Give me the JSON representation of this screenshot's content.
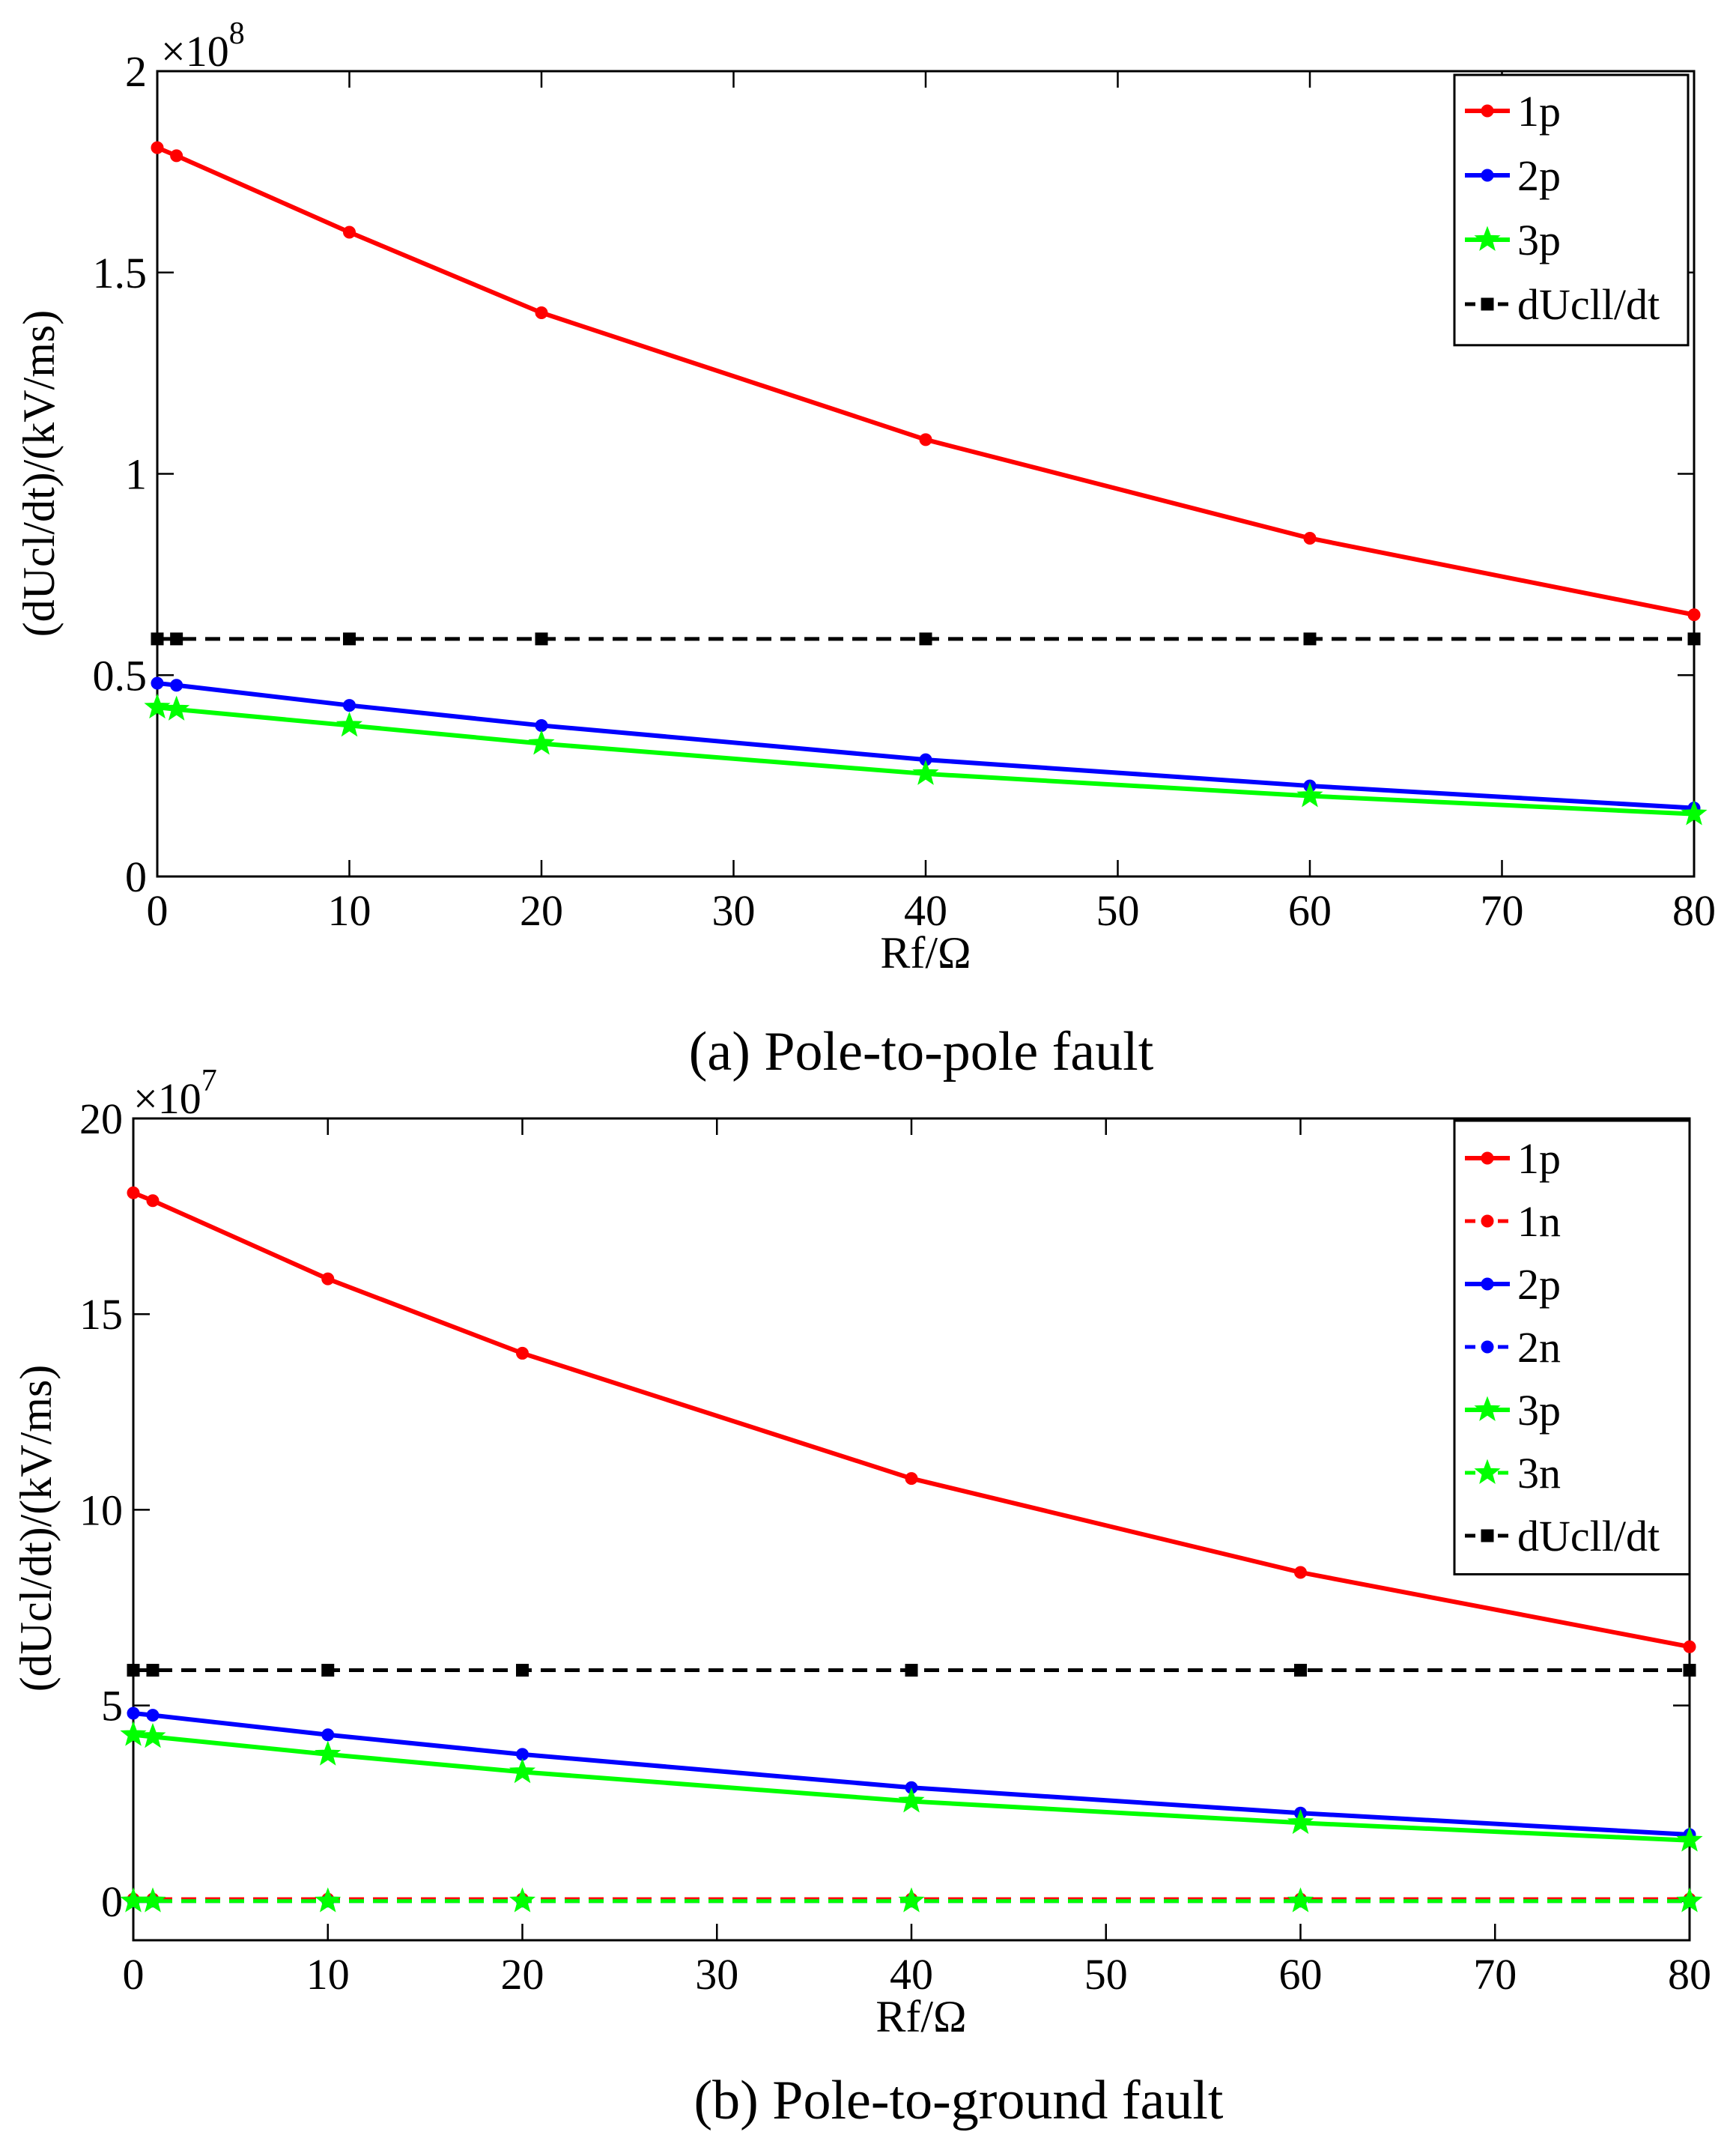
{
  "chart_data": [
    {
      "type": "line",
      "caption": "(a)  Pole-to-pole fault",
      "title": "",
      "xlabel": "Rf/Ω",
      "ylabel": "(dUcl/dt)/(kV/ms)",
      "exponent_base": "×10",
      "exponent_power": "8",
      "xlim": [
        0,
        80
      ],
      "ylim": [
        0,
        2
      ],
      "xticks": [
        0,
        10,
        20,
        30,
        40,
        50,
        60,
        70,
        80
      ],
      "xtick_labels": [
        "0",
        "10",
        "20",
        "30",
        "40",
        "50",
        "60",
        "70",
        "80"
      ],
      "yticks": [
        0,
        0.5,
        1,
        1.5,
        2
      ],
      "ytick_labels": [
        "0",
        "0.5",
        "1",
        "1.5",
        "2"
      ],
      "x": [
        0,
        1,
        10,
        20,
        40,
        60,
        80
      ],
      "legend_position": "top-right",
      "series": [
        {
          "name": "1p",
          "color": "#ff0000",
          "marker": "dot",
          "dashed": false,
          "values": [
            1.81,
            1.79,
            1.6,
            1.4,
            1.085,
            0.84,
            0.65
          ]
        },
        {
          "name": "2p",
          "color": "#0000ff",
          "marker": "dot",
          "dashed": false,
          "values": [
            0.48,
            0.475,
            0.425,
            0.375,
            0.29,
            0.225,
            0.17
          ]
        },
        {
          "name": "3p",
          "color": "#00ff00",
          "marker": "star",
          "dashed": false,
          "values": [
            0.42,
            0.415,
            0.375,
            0.33,
            0.255,
            0.2,
            0.155
          ]
        },
        {
          "name": "dUcll/dt",
          "color": "#000000",
          "marker": "square",
          "dashed": true,
          "values": [
            0.59,
            0.59,
            0.59,
            0.59,
            0.59,
            0.59,
            0.59
          ]
        }
      ]
    },
    {
      "type": "line",
      "caption": "(b)  Pole-to-ground fault",
      "title": "",
      "xlabel": "Rf/Ω",
      "ylabel": "(dUcl/dt)/(kV/ms)",
      "exponent_base": "×10",
      "exponent_power": "7",
      "xlim": [
        0,
        80
      ],
      "ylim": [
        -1,
        20
      ],
      "xticks": [
        0,
        10,
        20,
        30,
        40,
        50,
        60,
        70,
        80
      ],
      "xtick_labels": [
        "0",
        "10",
        "20",
        "30",
        "40",
        "50",
        "60",
        "70",
        "80"
      ],
      "yticks": [
        0,
        5,
        10,
        15,
        20
      ],
      "ytick_labels": [
        "0",
        "5",
        "10",
        "15",
        "20"
      ],
      "x": [
        0,
        1,
        10,
        20,
        40,
        60,
        80
      ],
      "legend_position": "top-right",
      "series": [
        {
          "name": "1p",
          "color": "#ff0000",
          "marker": "dot",
          "dashed": false,
          "values": [
            18.1,
            17.9,
            15.9,
            14.0,
            10.8,
            8.4,
            6.5
          ]
        },
        {
          "name": "1n",
          "color": "#ff0000",
          "marker": "dot",
          "dashed": true,
          "values": [
            0.05,
            0.05,
            0.05,
            0.05,
            0.05,
            0.05,
            0.05
          ]
        },
        {
          "name": "2p",
          "color": "#0000ff",
          "marker": "dot",
          "dashed": false,
          "values": [
            4.8,
            4.75,
            4.25,
            3.75,
            2.9,
            2.25,
            1.7
          ]
        },
        {
          "name": "2n",
          "color": "#0000ff",
          "marker": "dot",
          "dashed": true,
          "values": [
            0.0,
            0.0,
            0.0,
            0.0,
            0.0,
            0.0,
            0.0
          ]
        },
        {
          "name": "3p",
          "color": "#00ff00",
          "marker": "star",
          "dashed": false,
          "values": [
            4.25,
            4.2,
            3.75,
            3.3,
            2.55,
            2.0,
            1.55
          ]
        },
        {
          "name": "3n",
          "color": "#00ff00",
          "marker": "star",
          "dashed": true,
          "values": [
            0.0,
            0.0,
            0.0,
            0.0,
            0.0,
            0.0,
            0.0
          ]
        },
        {
          "name": "dUcll/dt",
          "color": "#000000",
          "marker": "square",
          "dashed": true,
          "values": [
            5.9,
            5.9,
            5.9,
            5.9,
            5.9,
            5.9,
            5.9
          ]
        }
      ]
    }
  ]
}
